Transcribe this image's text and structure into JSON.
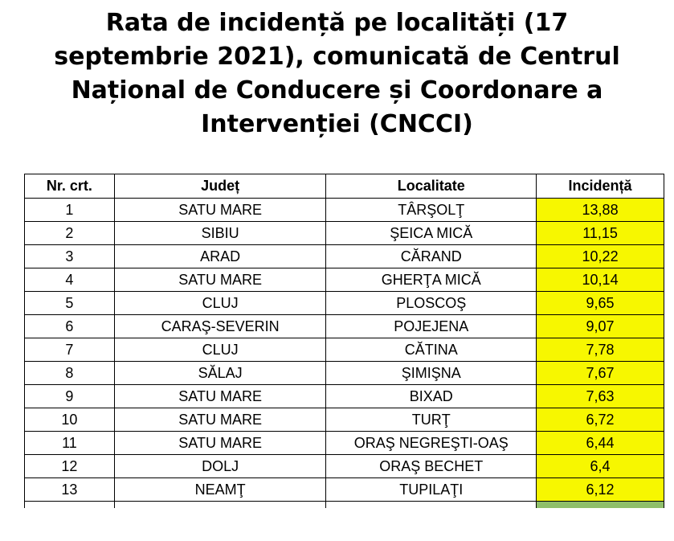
{
  "title_lines": [
    "Rata de incidență pe localități (17",
    "septembrie 2021), comunicată de Centrul",
    "Național de Conducere și Coordonare a",
    "Intervenției (CNCCI)"
  ],
  "table": {
    "headers": [
      "Nr. crt.",
      "Județ",
      "Localitate",
      "Incidență"
    ],
    "rows": [
      {
        "nr": "1",
        "judet": "SATU MARE",
        "localitate": "TÂRŞOLŢ",
        "incidenta": "13,88"
      },
      {
        "nr": "2",
        "judet": "SIBIU",
        "localitate": "ŞEICA MICĂ",
        "incidenta": "11,15"
      },
      {
        "nr": "3",
        "judet": "ARAD",
        "localitate": "CĂRAND",
        "incidenta": "10,22"
      },
      {
        "nr": "4",
        "judet": "SATU MARE",
        "localitate": "GHERŢA MICĂ",
        "incidenta": "10,14"
      },
      {
        "nr": "5",
        "judet": "CLUJ",
        "localitate": "PLOSCOŞ",
        "incidenta": "9,65"
      },
      {
        "nr": "6",
        "judet": "CARAŞ-SEVERIN",
        "localitate": "POJEJENA",
        "incidenta": "9,07"
      },
      {
        "nr": "7",
        "judet": "CLUJ",
        "localitate": "CĂTINA",
        "incidenta": "7,78"
      },
      {
        "nr": "8",
        "judet": "SĂLAJ",
        "localitate": "ŞIMIŞNA",
        "incidenta": "7,67"
      },
      {
        "nr": "9",
        "judet": "SATU MARE",
        "localitate": "BIXAD",
        "incidenta": "7,63"
      },
      {
        "nr": "10",
        "judet": "SATU MARE",
        "localitate": "TURŢ",
        "incidenta": "6,72"
      },
      {
        "nr": "11",
        "judet": "SATU MARE",
        "localitate": "ORAŞ NEGREŞTI-OAŞ",
        "incidenta": "6,44"
      },
      {
        "nr": "12",
        "judet": "DOLJ",
        "localitate": "ORAŞ BECHET",
        "incidenta": "6,4"
      },
      {
        "nr": "13",
        "judet": "NEAMŢ",
        "localitate": "TUPILAŢI",
        "incidenta": "6,12"
      }
    ]
  },
  "colors": {
    "highlight_yellow": "#f7f700",
    "highlight_green": "#8fbf6a"
  }
}
